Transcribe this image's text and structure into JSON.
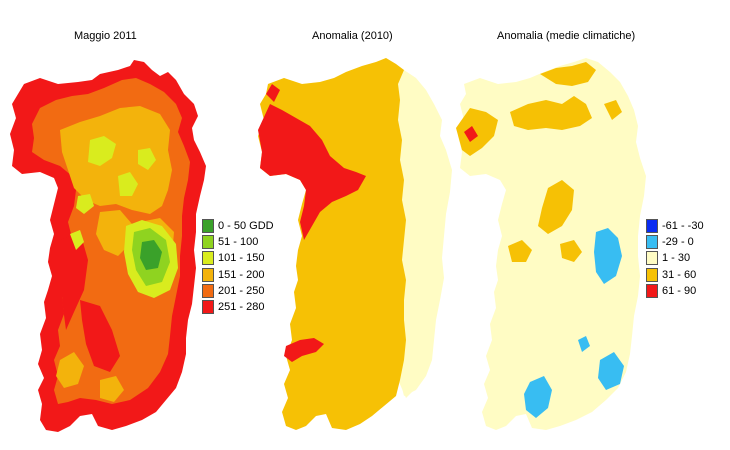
{
  "panels": [
    {
      "title": "Maggio 2011",
      "legend": [
        {
          "label": "0 - 50 GDD",
          "color": "#3aa12a"
        },
        {
          "label": "51 - 100",
          "color": "#8fd320"
        },
        {
          "label": "101 - 150",
          "color": "#d9ec1e"
        },
        {
          "label": "151 - 200",
          "color": "#f3b30c"
        },
        {
          "label": "201 - 250",
          "color": "#f26b12"
        },
        {
          "label": "251 - 280",
          "color": "#f21818"
        }
      ]
    },
    {
      "title": "Anomalia (2010)"
    },
    {
      "title": "Anomalia (medie climatiche)",
      "legend": [
        {
          "label": "-61 - -30",
          "color": "#0a2cf2"
        },
        {
          "label": "-29 - 0",
          "color": "#38bdf2"
        },
        {
          "label": "1 - 30",
          "color": "#fffcc4"
        },
        {
          "label": "31 - 60",
          "color": "#f6c105"
        },
        {
          "label": "61 - 90",
          "color": "#f21818"
        }
      ]
    }
  ],
  "icons": [
    "sardinia-map-gdd",
    "sardinia-map-anomaly-2010",
    "sardinia-map-anomaly-climate"
  ]
}
